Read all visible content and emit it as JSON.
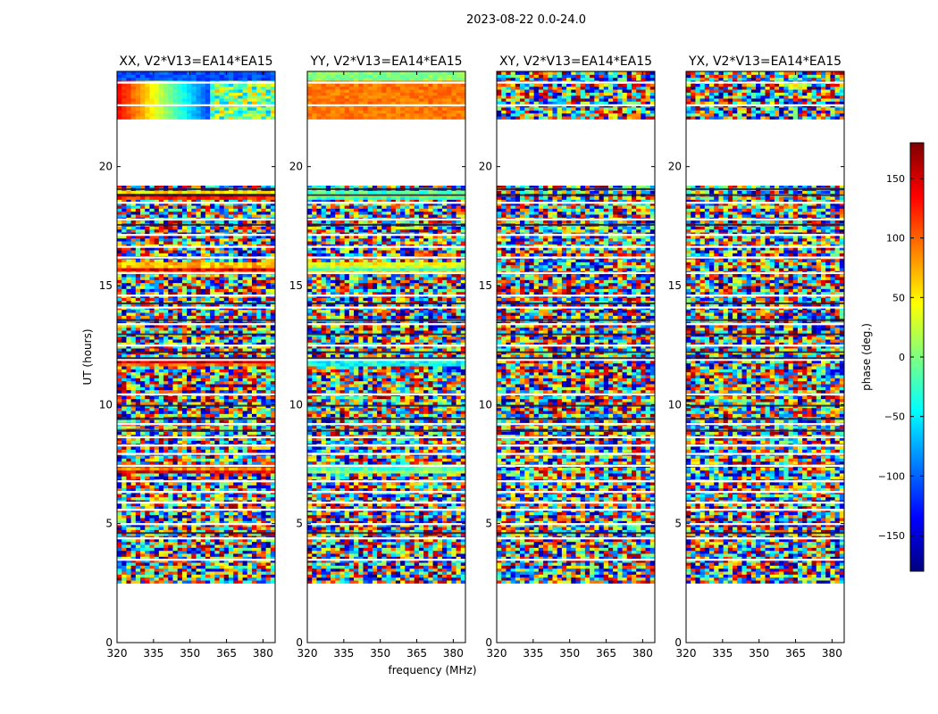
{
  "suptitle": "2023-08-22 0.0-24.0",
  "xlabel": "frequency (MHz)",
  "ylabel": "UT (hours)",
  "colorbar": {
    "label": "phase (deg.)",
    "range": [
      -180,
      180
    ],
    "ticks": [
      -150,
      -100,
      -50,
      0,
      50,
      100,
      150
    ],
    "tick_labels": [
      "−150",
      "−100",
      "−50",
      "0",
      "50",
      "100",
      "150"
    ],
    "colormap": "jet",
    "colors": [
      "#00007f",
      "#0000ff",
      "#007fff",
      "#00ffff",
      "#7fff7f",
      "#ffff00",
      "#ff7f00",
      "#ff0000",
      "#7f0000"
    ]
  },
  "chart_data": {
    "type": "heatmap",
    "x_range": [
      320,
      385
    ],
    "x_ticks": [
      320,
      335,
      350,
      365,
      380
    ],
    "y_range": [
      0,
      24
    ],
    "y_ticks": [
      0,
      5,
      10,
      15,
      20
    ],
    "data_coverage_hours": [
      2.5,
      22.0
    ],
    "data_coverage_hours_late": [
      22.0,
      24.0
    ],
    "gap_hours": [
      19.2,
      22.0
    ],
    "value_description": "visibility phase in degrees, -180 to 180",
    "panels": [
      {
        "title": "XX, V2*V13=EA14*EA15",
        "pol": "XX"
      },
      {
        "title": "YY, V2*V13=EA14*EA15",
        "pol": "YY"
      },
      {
        "title": "XY, V2*V13=EA14*EA15",
        "pol": "XY"
      },
      {
        "title": "YX, V2*V13=EA14*EA15",
        "pol": "YX"
      }
    ]
  }
}
